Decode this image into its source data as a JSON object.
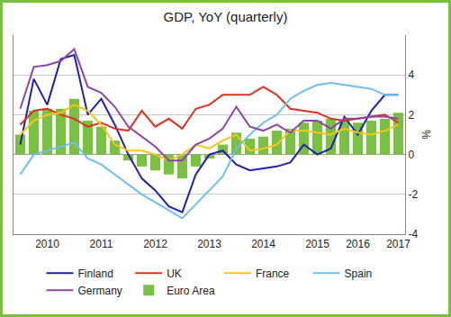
{
  "chart_data": {
    "type": "line",
    "title": "GDP, YoY (quarterly)",
    "y_label": "%",
    "categories": [
      null,
      null,
      "2010",
      null,
      null,
      null,
      "2011",
      null,
      null,
      null,
      "2012",
      null,
      null,
      null,
      "2013",
      null,
      null,
      null,
      "2014",
      null,
      null,
      null,
      "2015",
      null,
      null,
      "2016",
      null,
      null,
      "2017"
    ],
    "series": [
      {
        "name": "Finland",
        "type": "line",
        "color": "#1f1fb0",
        "values": [
          0.5,
          3.8,
          2.5,
          4.8,
          5.0,
          2.0,
          2.8,
          1.5,
          0.0,
          -1.2,
          -1.8,
          -2.6,
          -2.9,
          -1.0,
          0.0,
          0.2,
          -0.5,
          -0.8,
          -0.7,
          -0.6,
          -0.4,
          0.5,
          0.0,
          0.3,
          1.9,
          1.0,
          2.2,
          3.0,
          3.0
        ]
      },
      {
        "name": "UK",
        "type": "line",
        "color": "#e0301e",
        "values": [
          1.5,
          2.2,
          2.3,
          2.0,
          1.8,
          1.4,
          1.6,
          1.3,
          1.2,
          2.2,
          1.4,
          1.8,
          1.3,
          2.3,
          2.5,
          3.0,
          3.0,
          3.0,
          3.4,
          3.0,
          2.3,
          2.2,
          2.1,
          1.8,
          1.7,
          1.8,
          1.9,
          2.0,
          1.6
        ]
      },
      {
        "name": "France",
        "type": "line",
        "color": "#f5c518",
        "values": [
          1.0,
          1.7,
          2.0,
          2.1,
          2.5,
          2.2,
          1.5,
          0.5,
          0.2,
          0.2,
          0.0,
          -0.3,
          0.0,
          0.5,
          0.3,
          0.7,
          1.0,
          0.2,
          0.3,
          0.5,
          1.2,
          1.2,
          1.1,
          1.0,
          1.3,
          1.1,
          1.0,
          1.2,
          1.5
        ]
      },
      {
        "name": "Spain",
        "type": "line",
        "color": "#6ec0ea",
        "values": [
          -1.0,
          0.0,
          0.2,
          0.4,
          0.6,
          -0.2,
          -0.5,
          -1.0,
          -1.5,
          -2.0,
          -2.4,
          -2.8,
          -3.2,
          -2.5,
          -1.8,
          -1.1,
          0.3,
          1.0,
          1.6,
          2.0,
          2.8,
          3.2,
          3.5,
          3.6,
          3.5,
          3.4,
          3.3,
          3.0,
          3.0
        ]
      },
      {
        "name": "Germany",
        "type": "line",
        "color": "#8e44ad",
        "values": [
          2.3,
          4.4,
          4.5,
          4.7,
          5.3,
          3.4,
          3.1,
          2.4,
          1.4,
          0.9,
          0.4,
          -0.3,
          -0.3,
          0.5,
          0.8,
          1.3,
          2.4,
          1.4,
          1.2,
          1.5,
          1.1,
          1.7,
          1.7,
          1.3,
          1.8,
          1.8,
          1.9,
          1.9,
          1.8
        ]
      },
      {
        "name": "Euro Area",
        "type": "bar",
        "color": "#7ac143",
        "values": [
          1.0,
          2.2,
          2.3,
          2.3,
          2.8,
          1.7,
          1.4,
          0.7,
          -0.3,
          -0.6,
          -0.8,
          -1.0,
          -1.2,
          -0.6,
          -0.2,
          0.5,
          1.1,
          0.8,
          0.9,
          1.2,
          1.3,
          1.6,
          1.7,
          1.8,
          1.7,
          1.6,
          1.7,
          1.8,
          2.1
        ]
      }
    ],
    "ylim": [
      -4,
      6
    ],
    "yticks": [
      -4,
      -2,
      0,
      2,
      4
    ],
    "grid": true,
    "legend": "bottom"
  }
}
